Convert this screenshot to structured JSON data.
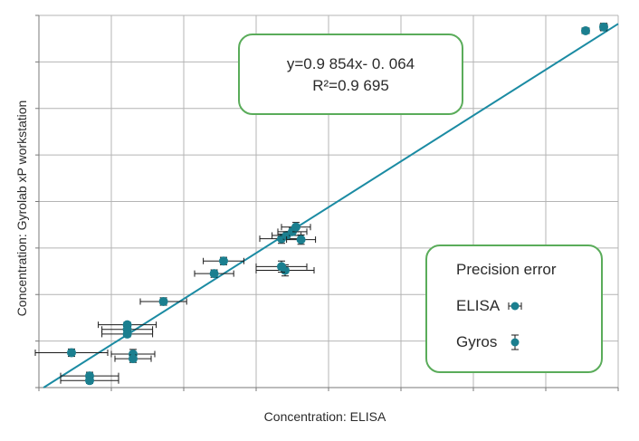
{
  "chart_data": {
    "type": "scatter",
    "xlabel": "Concentration: ELISA",
    "ylabel": "Concentration: Gyrolab xP workstation",
    "xlim": [
      0,
      8
    ],
    "ylim": [
      0,
      8
    ],
    "grid": true,
    "legend_position": "bottom-right",
    "equation": "y=0.9 854x- 0. 064",
    "r_squared": "R²=0.9 695",
    "legend": {
      "title": "Precision error",
      "entries": [
        {
          "label": "ELISA",
          "error_direction": "horizontal"
        },
        {
          "label": "Gyros",
          "error_direction": "vertical"
        }
      ]
    },
    "regression": {
      "slope": 0.9854,
      "intercept": -0.064
    },
    "point_color": "#1b7f8f",
    "line_color": "#1b8ba3",
    "points": [
      {
        "x": 0.45,
        "y": 0.75,
        "x_err": 0.5,
        "y_err": 0.08
      },
      {
        "x": 0.7,
        "y": 0.25,
        "x_err": 0.4,
        "y_err": 0.08
      },
      {
        "x": 0.7,
        "y": 0.15,
        "x_err": 0.4,
        "y_err": 0.06
      },
      {
        "x": 1.22,
        "y": 1.35,
        "x_err": 0.4,
        "y_err": 0.06
      },
      {
        "x": 1.22,
        "y": 1.25,
        "x_err": 0.35,
        "y_err": 0.06
      },
      {
        "x": 1.22,
        "y": 1.15,
        "x_err": 0.35,
        "y_err": 0.06
      },
      {
        "x": 1.3,
        "y": 0.72,
        "x_err": 0.3,
        "y_err": 0.1
      },
      {
        "x": 1.3,
        "y": 0.62,
        "x_err": 0.25,
        "y_err": 0.08
      },
      {
        "x": 1.72,
        "y": 1.85,
        "x_err": 0.32,
        "y_err": 0.08
      },
      {
        "x": 2.42,
        "y": 2.45,
        "x_err": 0.27,
        "y_err": 0.08
      },
      {
        "x": 2.55,
        "y": 2.72,
        "x_err": 0.28,
        "y_err": 0.08
      },
      {
        "x": 3.4,
        "y": 2.52,
        "x_err": 0.4,
        "y_err": 0.12
      },
      {
        "x": 3.35,
        "y": 2.6,
        "x_err": 0.35,
        "y_err": 0.12
      },
      {
        "x": 3.35,
        "y": 3.2,
        "x_err": 0.3,
        "y_err": 0.1
      },
      {
        "x": 3.42,
        "y": 3.27,
        "x_err": 0.2,
        "y_err": 0.08
      },
      {
        "x": 3.5,
        "y": 3.35,
        "x_err": 0.2,
        "y_err": 0.08
      },
      {
        "x": 3.55,
        "y": 3.45,
        "x_err": 0.2,
        "y_err": 0.1
      },
      {
        "x": 3.62,
        "y": 3.18,
        "x_err": 0.2,
        "y_err": 0.1
      },
      {
        "x": 7.55,
        "y": 7.67,
        "x_err": 0.05,
        "y_err": 0.06
      },
      {
        "x": 7.8,
        "y": 7.75,
        "x_err": 0.05,
        "y_err": 0.08
      }
    ]
  }
}
